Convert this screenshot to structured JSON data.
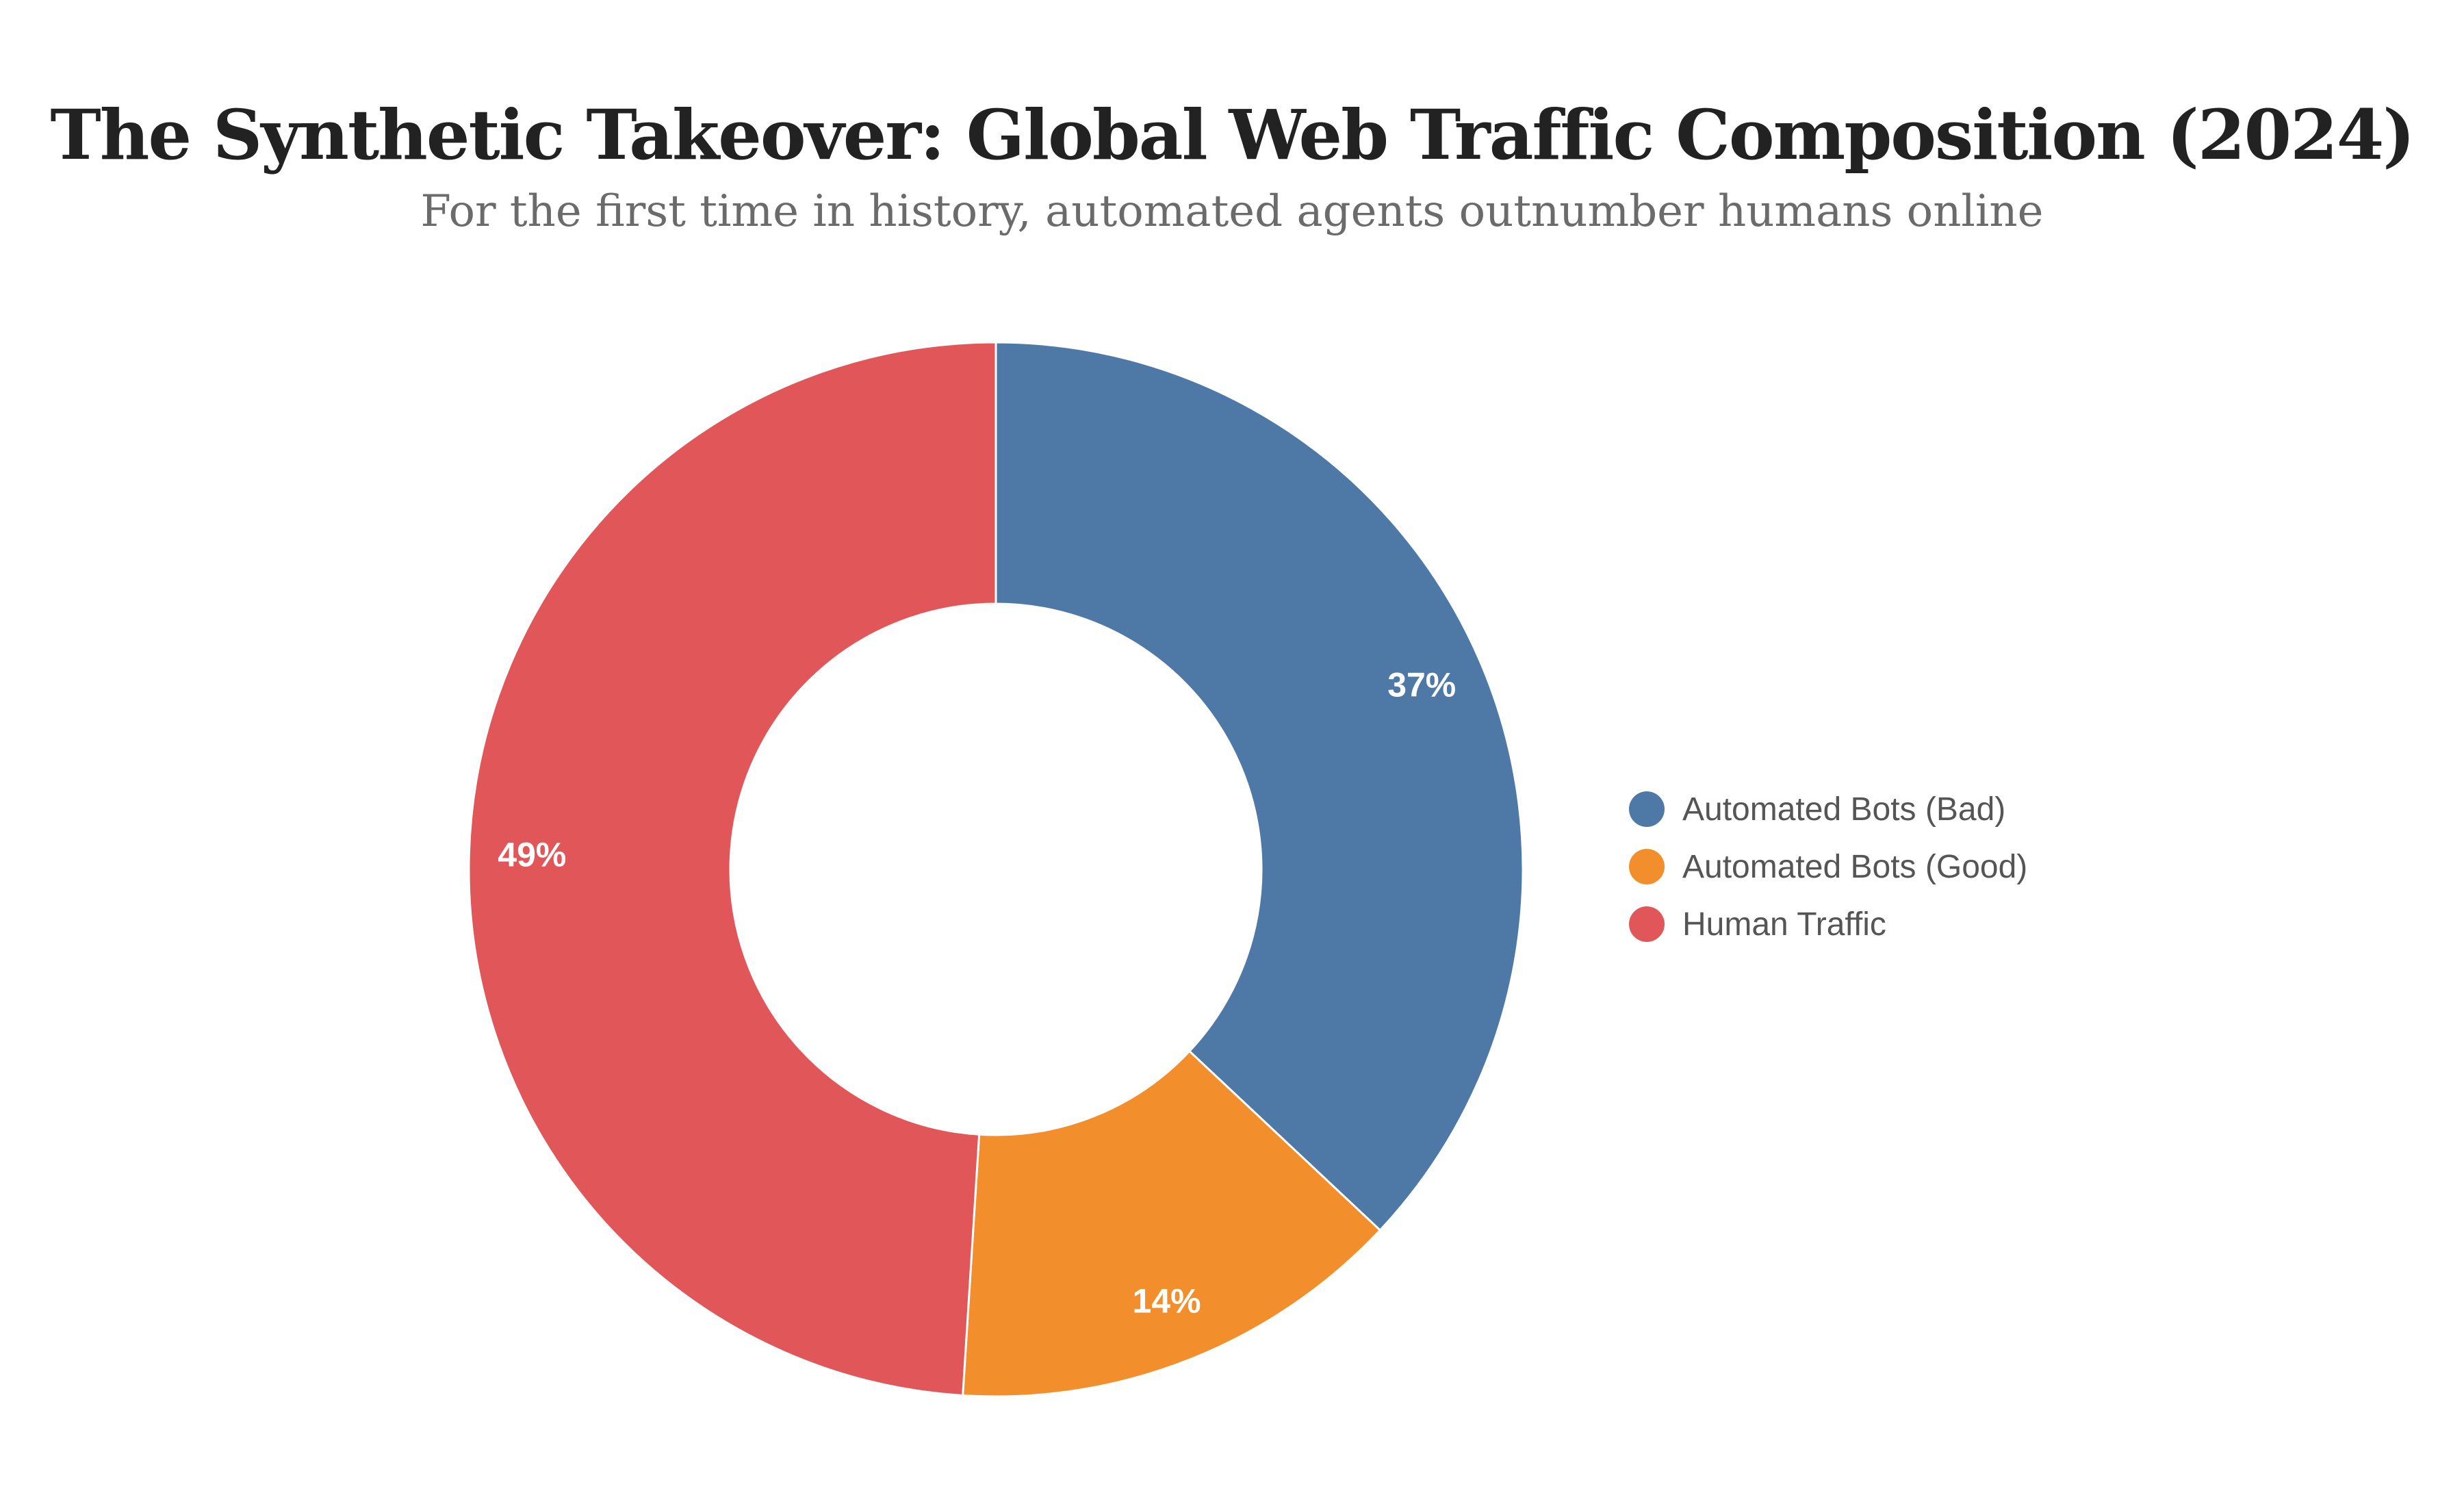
{
  "chart_data": {
    "type": "pie",
    "title": "The Synthetic Takeover: Global Web Traffic Composition (2024)",
    "subtitle": "For the first time in history, automated agents outnumber humans online",
    "donut": true,
    "legend_position": "right",
    "categories": [
      "Automated Bots (Bad)",
      "Automated Bots (Good)",
      "Human Traffic"
    ],
    "values": [
      37,
      14,
      49
    ],
    "labels": [
      "37%",
      "14%",
      "49%"
    ],
    "colors": [
      "#4e79a7",
      "#f28e2b",
      "#e15759"
    ]
  }
}
